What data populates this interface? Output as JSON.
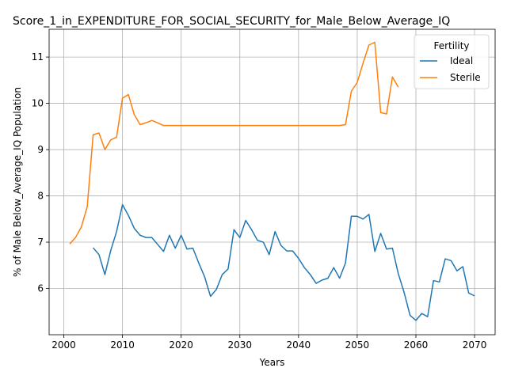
{
  "chart_data": {
    "type": "line",
    "title": "Score_1_in_EXPENDITURE_FOR_SOCIAL_SECURITY_for_Male_Below_Average_IQ",
    "xlabel": "Years",
    "ylabel": "% of Male Below_Average_IQ Population",
    "xlim": [
      1997.5,
      2073.5
    ],
    "ylim": [
      5.0,
      11.6
    ],
    "xticks": [
      2000,
      2010,
      2020,
      2030,
      2040,
      2050,
      2060,
      2070
    ],
    "yticks": [
      6,
      7,
      8,
      9,
      10,
      11
    ],
    "grid": true,
    "legend": {
      "title": "Fertility",
      "placement": "top-right"
    },
    "series": [
      {
        "name": "Ideal",
        "color": "#1f77b4",
        "x": [
          2005,
          2006,
          2007,
          2008,
          2009,
          2010,
          2011,
          2012,
          2013,
          2014,
          2015,
          2016,
          2017,
          2018,
          2019,
          2020,
          2021,
          2022,
          2023,
          2024,
          2025,
          2026,
          2027,
          2028,
          2029,
          2030,
          2031,
          2032,
          2033,
          2034,
          2035,
          2036,
          2037,
          2038,
          2039,
          2040,
          2041,
          2042,
          2043,
          2044,
          2045,
          2046,
          2047,
          2048,
          2049,
          2050,
          2051,
          2052,
          2053,
          2054,
          2055,
          2056,
          2057,
          2058,
          2059,
          2060,
          2061,
          2062,
          2063,
          2064,
          2065,
          2066,
          2067,
          2068,
          2069,
          2070
        ],
        "y": [
          6.88,
          6.73,
          6.3,
          6.82,
          7.23,
          7.81,
          7.58,
          7.3,
          7.15,
          7.1,
          7.1,
          6.95,
          6.8,
          7.15,
          6.87,
          7.15,
          6.85,
          6.87,
          6.55,
          6.25,
          5.83,
          5.98,
          6.3,
          6.42,
          7.27,
          7.1,
          7.47,
          7.27,
          7.04,
          7.0,
          6.73,
          7.23,
          6.93,
          6.81,
          6.81,
          6.65,
          6.45,
          6.3,
          6.11,
          6.18,
          6.22,
          6.45,
          6.22,
          6.55,
          7.56,
          7.56,
          7.5,
          7.6,
          6.8,
          7.19,
          6.85,
          6.87,
          6.32,
          5.91,
          5.42,
          5.31,
          5.46,
          5.39,
          6.17,
          6.14,
          6.64,
          6.6,
          6.38,
          6.47,
          5.9,
          5.84
        ]
      },
      {
        "name": "Sterile",
        "color": "#ff7f0e",
        "x": [
          2001,
          2002,
          2003,
          2004,
          2005,
          2006,
          2007,
          2008,
          2009,
          2010,
          2011,
          2012,
          2013,
          2014,
          2015,
          2016,
          2017,
          2018,
          2019,
          2020,
          2021,
          2022,
          2023,
          2024,
          2025,
          2026,
          2027,
          2028,
          2029,
          2030,
          2031,
          2032,
          2033,
          2034,
          2035,
          2036,
          2037,
          2038,
          2039,
          2040,
          2041,
          2042,
          2043,
          2044,
          2045,
          2046,
          2047,
          2048,
          2049,
          2050,
          2051,
          2052,
          2053,
          2054,
          2055,
          2056,
          2057
        ],
        "y": [
          6.96,
          7.1,
          7.33,
          7.77,
          9.32,
          9.36,
          9.0,
          9.21,
          9.27,
          10.11,
          10.19,
          9.76,
          9.54,
          9.58,
          9.63,
          9.58,
          9.52,
          9.52,
          9.52,
          9.52,
          9.52,
          9.52,
          9.52,
          9.52,
          9.52,
          9.52,
          9.52,
          9.52,
          9.52,
          9.52,
          9.52,
          9.52,
          9.52,
          9.52,
          9.52,
          9.52,
          9.52,
          9.52,
          9.52,
          9.52,
          9.52,
          9.52,
          9.52,
          9.52,
          9.52,
          9.52,
          9.52,
          9.54,
          10.26,
          10.45,
          10.87,
          11.26,
          11.32,
          9.8,
          9.77,
          10.57,
          10.35
        ]
      }
    ]
  }
}
